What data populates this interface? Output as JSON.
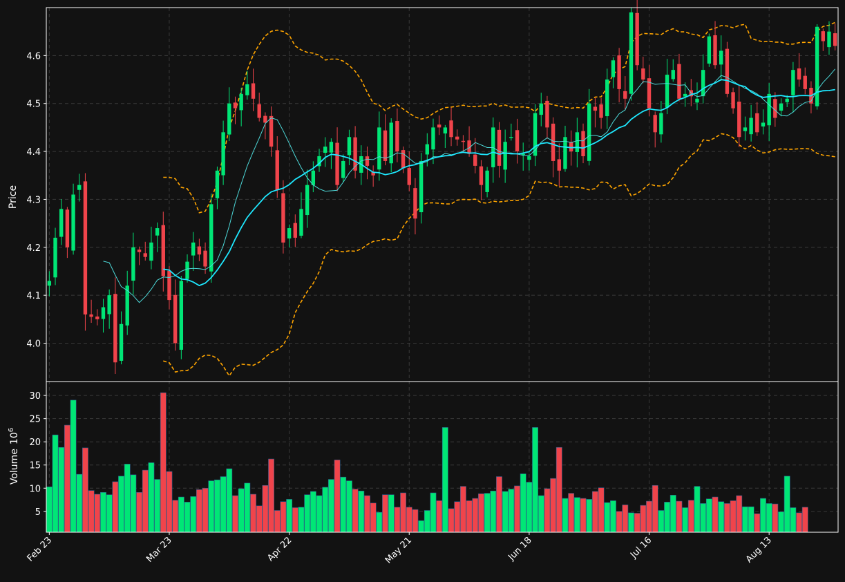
{
  "chart_data": {
    "type": "candlestick",
    "style": {
      "background": "#121212",
      "up_color": "#00e676",
      "down_color": "#f0444b",
      "grid": "dashed",
      "sma_fast_color": "#4dd9d9",
      "sma_slow_color": "#1ee8ff",
      "band_color": "#ffa500"
    },
    "x_tick_labels": [
      "Feb 23",
      "Mar 23",
      "Apr 22",
      "May 21",
      "Jun 18",
      "Jul 16",
      "Aug 13"
    ],
    "x_tick_index": [
      0,
      20,
      40,
      60,
      80,
      100,
      120
    ],
    "price_panel": {
      "ylabel": "Price",
      "ylim": [
        3.92,
        4.7
      ],
      "yticks": [
        4.0,
        4.1,
        4.2,
        4.3,
        4.4,
        4.5,
        4.6
      ],
      "ytick_labels": [
        "4.0",
        "4.1",
        "4.2",
        "4.3",
        "4.4",
        "4.5",
        "4.6"
      ]
    },
    "volume_panel": {
      "ylabel": "Volume",
      "ylabel_exponent": "10",
      "ylabel_exponent_power": "6",
      "ylim": [
        0.5,
        33
      ],
      "yticks": [
        5,
        10,
        15,
        20,
        25,
        30
      ],
      "ytick_labels": [
        "5",
        "10",
        "15",
        "20",
        "25",
        "30"
      ]
    },
    "close_anchors": [
      [
        0,
        4.13
      ],
      [
        1,
        4.22
      ],
      [
        2,
        4.28
      ],
      [
        3,
        4.2
      ],
      [
        4,
        4.31
      ],
      [
        5,
        4.33
      ],
      [
        6,
        4.06
      ],
      [
        8,
        4.05
      ],
      [
        10,
        4.1
      ],
      [
        11,
        3.96
      ],
      [
        13,
        4.12
      ],
      [
        14,
        4.2
      ],
      [
        16,
        4.18
      ],
      [
        18,
        4.24
      ],
      [
        19,
        4.14
      ],
      [
        20,
        4.09
      ],
      [
        21,
        4.0
      ],
      [
        22,
        4.13
      ],
      [
        24,
        4.21
      ],
      [
        26,
        4.16
      ],
      [
        27,
        4.29
      ],
      [
        28,
        4.36
      ],
      [
        29,
        4.44
      ],
      [
        30,
        4.5
      ],
      [
        31,
        4.49
      ],
      [
        32,
        4.52
      ],
      [
        33,
        4.54
      ],
      [
        34,
        4.51
      ],
      [
        35,
        4.47
      ],
      [
        36,
        4.46
      ],
      [
        37,
        4.41
      ],
      [
        38,
        4.32
      ],
      [
        39,
        4.21
      ],
      [
        40,
        4.24
      ],
      [
        41,
        4.22
      ],
      [
        42,
        4.28
      ],
      [
        43,
        4.33
      ],
      [
        45,
        4.39
      ],
      [
        46,
        4.41
      ],
      [
        47,
        4.42
      ],
      [
        48,
        4.33
      ],
      [
        50,
        4.43
      ],
      [
        51,
        4.36
      ],
      [
        52,
        4.39
      ],
      [
        54,
        4.35
      ],
      [
        55,
        4.45
      ],
      [
        56,
        4.38
      ],
      [
        57,
        4.46
      ],
      [
        58,
        4.4
      ],
      [
        60,
        4.33
      ],
      [
        61,
        4.26
      ],
      [
        62,
        4.38
      ],
      [
        64,
        4.45
      ],
      [
        66,
        4.45
      ],
      [
        67,
        4.43
      ],
      [
        69,
        4.42
      ],
      [
        71,
        4.37
      ],
      [
        72,
        4.33
      ],
      [
        73,
        4.36
      ],
      [
        74,
        4.45
      ],
      [
        75,
        4.37
      ],
      [
        76,
        4.42
      ],
      [
        77,
        4.43
      ],
      [
        78,
        4.4
      ],
      [
        80,
        4.39
      ],
      [
        81,
        4.48
      ],
      [
        82,
        4.5
      ],
      [
        83,
        4.45
      ],
      [
        84,
        4.38
      ],
      [
        85,
        4.36
      ],
      [
        86,
        4.43
      ],
      [
        87,
        4.4
      ],
      [
        88,
        4.44
      ],
      [
        89,
        4.39
      ],
      [
        90,
        4.5
      ],
      [
        92,
        4.47
      ],
      [
        93,
        4.55
      ],
      [
        94,
        4.59
      ],
      [
        95,
        4.53
      ],
      [
        96,
        4.51
      ],
      [
        97,
        4.69
      ],
      [
        98,
        4.58
      ],
      [
        99,
        4.55
      ],
      [
        100,
        4.49
      ],
      [
        101,
        4.44
      ],
      [
        102,
        4.48
      ],
      [
        103,
        4.56
      ],
      [
        104,
        4.57
      ],
      [
        105,
        4.51
      ],
      [
        106,
        4.52
      ],
      [
        108,
        4.51
      ],
      [
        109,
        4.57
      ],
      [
        110,
        4.64
      ],
      [
        111,
        4.58
      ],
      [
        112,
        4.61
      ],
      [
        113,
        4.52
      ],
      [
        114,
        4.49
      ],
      [
        115,
        4.43
      ],
      [
        116,
        4.45
      ],
      [
        117,
        4.47
      ],
      [
        118,
        4.44
      ],
      [
        119,
        4.46
      ],
      [
        120,
        4.52
      ],
      [
        121,
        4.47
      ],
      [
        122,
        4.5
      ],
      [
        123,
        4.51
      ],
      [
        124,
        4.57
      ],
      [
        125,
        4.55
      ],
      [
        126,
        4.53
      ],
      [
        127,
        4.5
      ],
      [
        128,
        4.66
      ],
      [
        129,
        4.63
      ],
      [
        130,
        4.65
      ],
      [
        131,
        4.62
      ]
    ],
    "volume_anchors": [
      [
        0,
        10.3
      ],
      [
        1,
        21.5
      ],
      [
        2,
        18.8
      ],
      [
        3,
        23.6
      ],
      [
        4,
        29.0
      ],
      [
        5,
        13.0
      ],
      [
        6,
        18.7
      ],
      [
        7,
        9.5
      ],
      [
        8,
        8.7
      ],
      [
        9,
        9.1
      ],
      [
        10,
        8.6
      ],
      [
        11,
        11.4
      ],
      [
        12,
        12.6
      ],
      [
        13,
        15.2
      ],
      [
        14,
        12.9
      ],
      [
        15,
        9.1
      ],
      [
        16,
        13.9
      ],
      [
        17,
        15.5
      ],
      [
        18,
        11.9
      ],
      [
        19,
        30.6
      ],
      [
        20,
        13.6
      ],
      [
        21,
        7.4
      ],
      [
        22,
        8.1
      ],
      [
        23,
        7.0
      ],
      [
        24,
        8.2
      ],
      [
        25,
        9.7
      ],
      [
        26,
        10.0
      ],
      [
        27,
        11.6
      ],
      [
        28,
        11.8
      ],
      [
        29,
        12.5
      ],
      [
        30,
        14.2
      ],
      [
        31,
        8.4
      ],
      [
        32,
        9.9
      ],
      [
        33,
        11.1
      ],
      [
        34,
        8.7
      ],
      [
        35,
        6.2
      ],
      [
        36,
        10.6
      ],
      [
        37,
        16.3
      ],
      [
        38,
        5.2
      ],
      [
        39,
        7.1
      ],
      [
        40,
        7.6
      ],
      [
        41,
        5.8
      ],
      [
        42,
        5.9
      ],
      [
        43,
        8.6
      ],
      [
        44,
        9.3
      ],
      [
        45,
        8.4
      ],
      [
        46,
        10.2
      ],
      [
        47,
        11.9
      ],
      [
        48,
        16.1
      ],
      [
        49,
        12.4
      ],
      [
        50,
        11.6
      ],
      [
        51,
        9.8
      ],
      [
        52,
        9.4
      ],
      [
        53,
        8.4
      ],
      [
        54,
        6.8
      ],
      [
        55,
        4.8
      ],
      [
        56,
        8.6
      ],
      [
        57,
        8.6
      ],
      [
        58,
        5.9
      ],
      [
        59,
        9.0
      ],
      [
        60,
        5.9
      ],
      [
        61,
        5.4
      ],
      [
        62,
        3.0
      ],
      [
        63,
        5.2
      ],
      [
        64,
        9.0
      ],
      [
        65,
        7.3
      ],
      [
        66,
        23.1
      ],
      [
        67,
        5.6
      ],
      [
        68,
        7.1
      ],
      [
        69,
        10.4
      ],
      [
        70,
        7.3
      ],
      [
        71,
        7.8
      ],
      [
        72,
        8.8
      ],
      [
        73,
        8.9
      ],
      [
        74,
        9.4
      ],
      [
        75,
        12.5
      ],
      [
        76,
        9.3
      ],
      [
        77,
        9.8
      ],
      [
        78,
        10.5
      ],
      [
        79,
        13.1
      ],
      [
        80,
        11.3
      ],
      [
        81,
        23.1
      ],
      [
        82,
        8.4
      ],
      [
        83,
        9.9
      ],
      [
        84,
        12.1
      ],
      [
        85,
        18.8
      ],
      [
        86,
        7.8
      ],
      [
        87,
        8.9
      ],
      [
        88,
        8.0
      ],
      [
        89,
        7.8
      ],
      [
        90,
        7.6
      ],
      [
        91,
        9.3
      ],
      [
        92,
        10.1
      ],
      [
        93,
        6.9
      ],
      [
        94,
        7.3
      ],
      [
        95,
        5.0
      ],
      [
        96,
        6.4
      ],
      [
        97,
        4.7
      ],
      [
        98,
        4.6
      ],
      [
        99,
        6.3
      ],
      [
        100,
        7.2
      ],
      [
        101,
        10.6
      ],
      [
        102,
        5.2
      ],
      [
        103,
        7.0
      ],
      [
        104,
        8.5
      ],
      [
        105,
        7.2
      ],
      [
        106,
        5.8
      ],
      [
        107,
        7.4
      ],
      [
        108,
        10.4
      ],
      [
        109,
        6.7
      ],
      [
        110,
        7.7
      ],
      [
        111,
        8.1
      ],
      [
        112,
        7.1
      ],
      [
        113,
        6.7
      ],
      [
        114,
        7.3
      ],
      [
        115,
        8.4
      ],
      [
        116,
        6.0
      ],
      [
        117,
        6.0
      ],
      [
        118,
        4.5
      ],
      [
        119,
        7.8
      ],
      [
        120,
        6.7
      ],
      [
        121,
        6.6
      ],
      [
        122,
        4.9
      ],
      [
        123,
        12.6
      ],
      [
        124,
        5.8
      ],
      [
        125,
        4.7
      ],
      [
        126,
        5.9
      ]
    ]
  }
}
